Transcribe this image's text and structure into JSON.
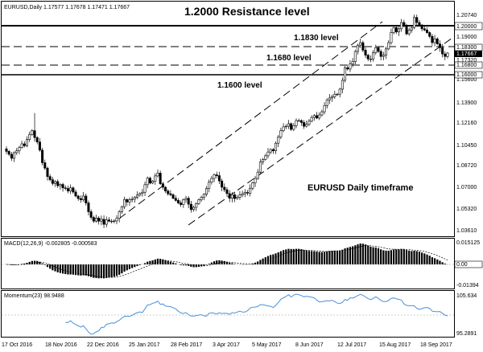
{
  "main": {
    "info": "EURUSD,Daily  1.17577 1.17678 1.17471 1.17667",
    "annotations": {
      "resistance": "1.2000 Resistance level",
      "l1830": "1.1830 level",
      "l1680": "1.1680 level",
      "l1600": "1.1600 level",
      "timeframe": "EURUSD Daily timeframe"
    },
    "axis_labels": [
      "1.20740",
      "1.19000",
      "1.17320",
      "1.15600",
      "1.13900",
      "1.12160",
      "1.10450",
      "1.08720",
      "1.07000",
      "1.05320",
      "1.03610"
    ],
    "price_tags": {
      "p20000": "1.20000",
      "p18300": "1.18300",
      "p17667": "1.17667",
      "p16800": "1.16800",
      "p16000": "1.16000"
    }
  },
  "macd": {
    "label": "MACD(12,26,9) -0.002805 -0.000583",
    "axis_labels": [
      "0.015125",
      "0.00",
      "-0.01394"
    ]
  },
  "momentum": {
    "label": "Momentum(23) 98.9488",
    "axis_labels": [
      "105.634",
      "95.2891"
    ]
  },
  "dates": [
    "17 Oct 2016",
    "18 Nov 2016",
    "22 Dec 2016",
    "25 Jan 2017",
    "28 Feb 2017",
    "3 Apr 2017",
    "5 May 2017",
    "8 Jun 2017",
    "12 Jul 2017",
    "15 Aug 2017",
    "18 Sep 2017"
  ],
  "colors": {
    "candle": "#000000",
    "momentum": "#4a90d9",
    "grid": "#999999"
  },
  "chart_data": {
    "type": "candlestick",
    "symbol": "EURUSD",
    "timeframe": "Daily",
    "ylim": [
      1.03,
      1.212
    ],
    "close": [
      1.0985,
      1.0962,
      1.093,
      1.0975,
      1.099,
      1.1015,
      1.1045,
      1.103,
      1.108,
      1.112,
      1.115,
      1.1095,
      1.106,
      1.0995,
      1.0895,
      1.0852,
      1.0785,
      1.076,
      1.073,
      1.0745,
      1.0712,
      1.0722,
      1.0695,
      1.069,
      1.067,
      1.0695,
      1.0662,
      1.063,
      1.061,
      1.06,
      1.063,
      1.0575,
      1.0505,
      1.046,
      1.043,
      1.0455,
      1.043,
      1.0445,
      1.0405,
      1.044,
      1.043,
      1.043,
      1.0432,
      1.0452,
      1.0505,
      1.0545,
      1.0602,
      1.0582,
      1.06,
      1.0605,
      1.062,
      1.0637,
      1.065,
      1.066,
      1.072,
      1.0772,
      1.0733,
      1.0748,
      1.079,
      1.0812,
      1.0728,
      1.07,
      1.067,
      1.0648,
      1.064,
      1.0612,
      1.0595,
      1.0575,
      1.0562,
      1.0602,
      1.0612,
      1.0565,
      1.0522,
      1.054,
      1.057,
      1.06,
      1.062,
      1.0644,
      1.069,
      1.074,
      1.077,
      1.0799,
      1.0792,
      1.075,
      1.07,
      1.068,
      1.065,
      1.0612,
      1.064,
      1.061,
      1.062,
      1.0638,
      1.0648,
      1.0658,
      1.0653,
      1.0692,
      1.0735,
      1.077,
      1.082,
      1.09,
      1.092,
      1.095,
      1.098,
      1.1,
      1.099,
      1.105,
      1.11,
      1.115,
      1.118,
      1.1185,
      1.1205,
      1.116,
      1.119,
      1.123,
      1.123,
      1.1215,
      1.1185,
      1.12,
      1.1225,
      1.1255,
      1.127,
      1.125,
      1.1275,
      1.13,
      1.135,
      1.1395,
      1.141,
      1.142,
      1.144,
      1.144,
      1.148,
      1.155,
      1.165,
      1.164,
      1.168,
      1.17,
      1.178,
      1.183,
      1.185,
      1.179,
      1.175,
      1.172,
      1.172,
      1.177,
      1.181,
      1.178,
      1.174,
      1.175,
      1.18,
      1.185,
      1.193,
      1.197,
      1.1935,
      1.196,
      1.201,
      1.198,
      1.192,
      1.195,
      1.197,
      1.205,
      1.201,
      1.199,
      1.196,
      1.195,
      1.193,
      1.19,
      1.185,
      1.188,
      1.184,
      1.181,
      1.176,
      1.174,
      1.1767
    ]
  }
}
